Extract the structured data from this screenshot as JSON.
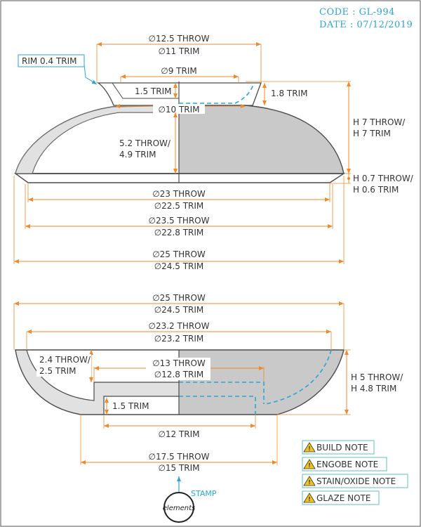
{
  "header": {
    "code": "CODE : GL-994",
    "date": "DATE : 07/12/2019"
  },
  "colors": {
    "dimension": "#ee8a2b",
    "accent": "#29a6d4",
    "outline": "#4a4a4a",
    "clay_fill": "#c9c9c9",
    "note_icon": "#f0c419",
    "note_border": "#5bbfc9"
  },
  "lid": {
    "top_d_throw": "∅12.5 THROW",
    "top_d_trim": "∅11 TRIM",
    "inner_d": "∅9 TRIM",
    "flange_h": "1.5 TRIM",
    "knob_h": "1.8 TRIM",
    "neck_d": "∅10 TRIM",
    "wall_throw": "5.2 THROW/",
    "wall_trim": "4.9 TRIM",
    "h_throw": "H 7 THROW/",
    "h_trim": "H 7 TRIM",
    "rim_h_throw": "H 0.7 THROW/",
    "rim_h_trim": "H 0.6 TRIM",
    "rim_callout": "RIM 0.4 TRIM",
    "d1_throw": "∅23 THROW",
    "d1_trim": "∅22.5 TRIM",
    "d2_throw": "∅23.5 THROW",
    "d2_trim": "∅22.8 TRIM",
    "d3_throw": "∅25 THROW",
    "d3_trim": "∅24.5 TRIM"
  },
  "bowl": {
    "top_d_throw": "∅25 THROW",
    "top_d_trim": "∅24.5 TRIM",
    "inner_d_throw": "∅23.2 THROW",
    "inner_d_trim": "∅23.2 TRIM",
    "wall_throw": "2.4 THROW/",
    "wall_trim": "2.5 TRIM",
    "foot_in_throw": "∅13 THROW",
    "foot_in_trim": "∅12.8 TRIM",
    "foot_h": "1.5 TRIM",
    "h_throw": "H 5 THROW/",
    "h_trim": "H 4.8 TRIM",
    "foot_d": "∅12 TRIM",
    "base_throw": "∅17.5 THROW",
    "base_trim": "∅15 TRIM"
  },
  "notes": [
    {
      "label": "BUILD NOTE",
      "icon": "warning-icon"
    },
    {
      "label": "ENGOBE NOTE",
      "icon": "warning-icon"
    },
    {
      "label": "STAIN/OXIDE NOTE",
      "icon": "warning-icon"
    },
    {
      "label": "GLAZE NOTE",
      "icon": "warning-icon"
    }
  ],
  "stamp": {
    "label": "STAMP",
    "logo_text": "elements"
  }
}
